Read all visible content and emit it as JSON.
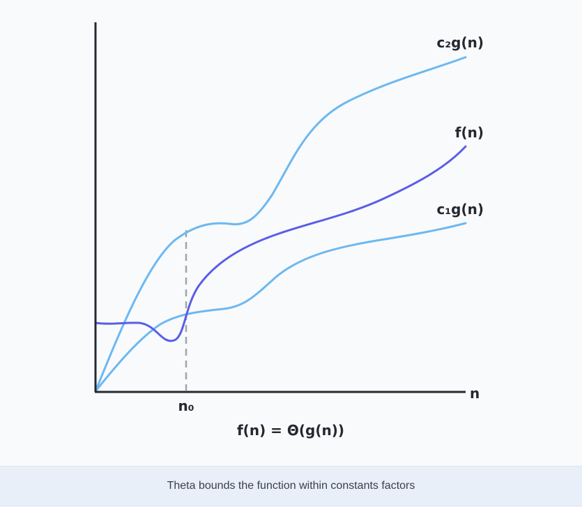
{
  "diagram": {
    "curves": {
      "upper": {
        "label": "c₂g(n)",
        "color": "#6db8f0"
      },
      "middle": {
        "label": "f(n)",
        "color": "#5b5de6"
      },
      "lower": {
        "label": "c₁g(n)",
        "color": "#6db8f0"
      }
    },
    "axis": {
      "x_label": "n",
      "threshold_label": "n₀",
      "axis_color": "#25282f",
      "threshold_color": "#a0a4ab"
    },
    "formula": "f(n) = Θ(g(n))"
  },
  "caption": {
    "text": "Theta bounds the function within constants factors"
  }
}
